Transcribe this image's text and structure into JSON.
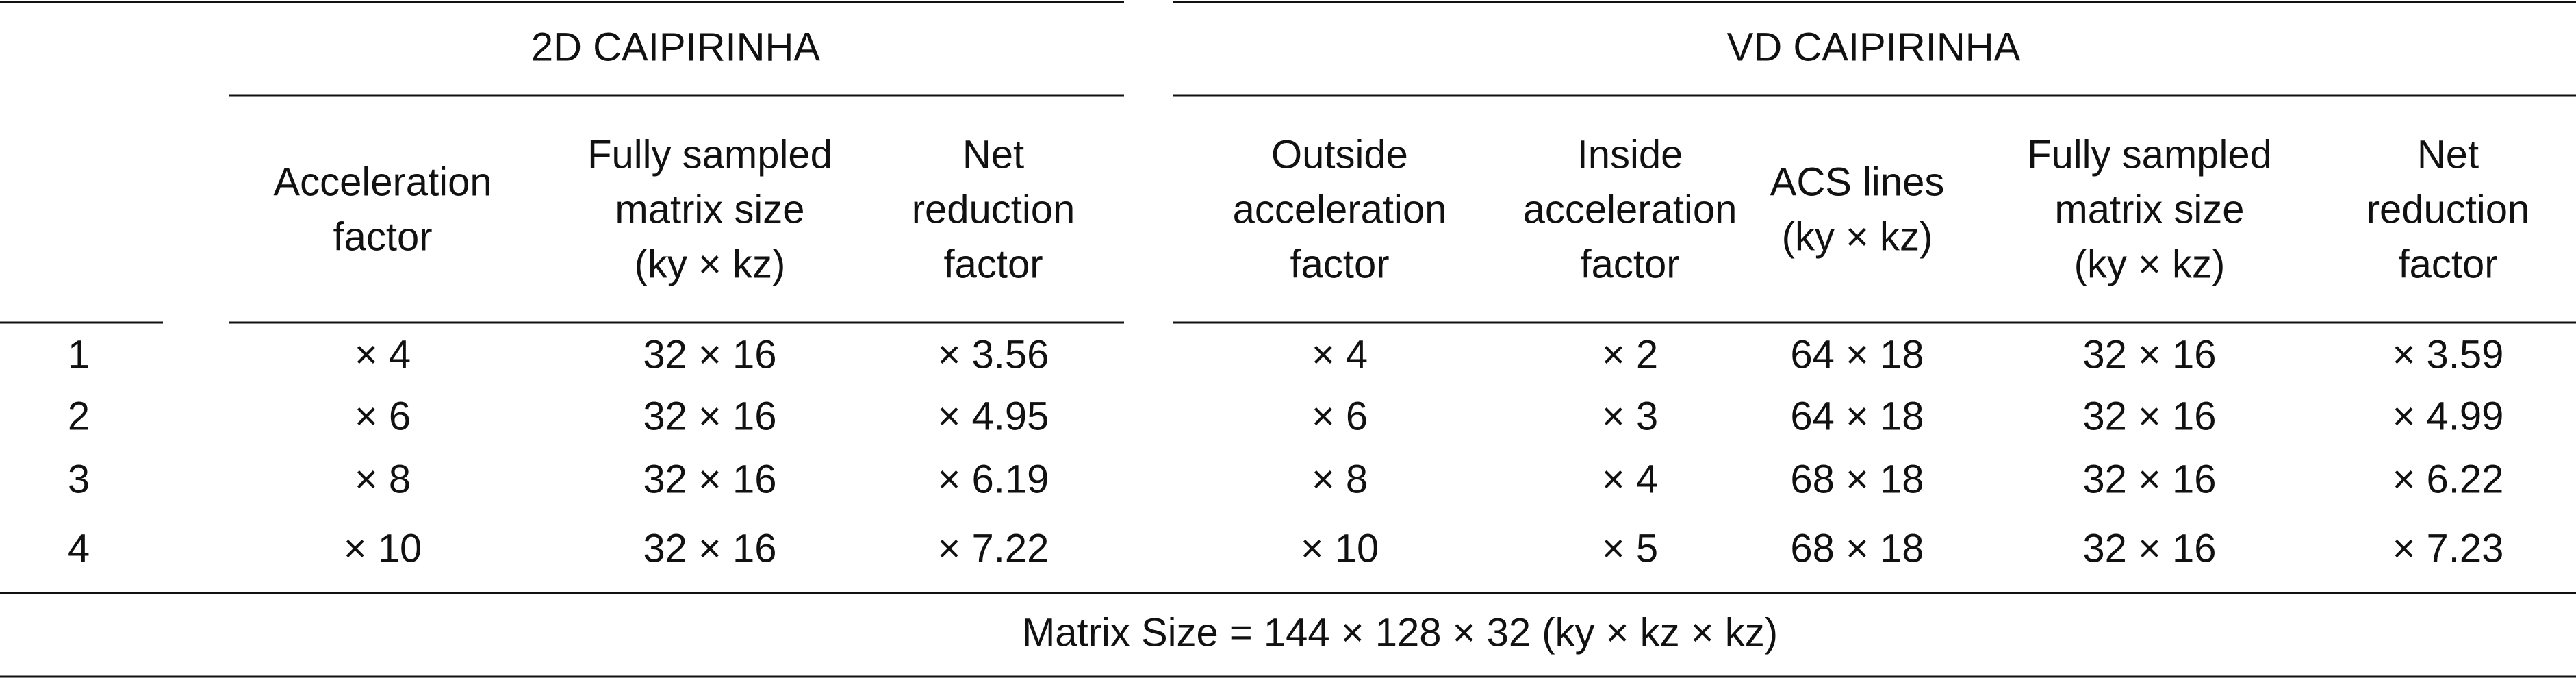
{
  "table": {
    "groups": [
      "2D CAIPIRINHA",
      "VD CAIPIRINHA"
    ],
    "columns": [
      [
        "Acceleration",
        "factor"
      ],
      [
        "Fully sampled",
        "matrix size",
        "(ky × kz)"
      ],
      [
        "Net",
        "reduction",
        "factor"
      ],
      [
        "Outside",
        "acceleration",
        "factor"
      ],
      [
        "Inside",
        "acceleration",
        "factor"
      ],
      [
        "ACS lines",
        "(ky × kz)"
      ],
      [
        "Fully sampled",
        "matrix size",
        "(ky × kz)"
      ],
      [
        "Net",
        "reduction",
        "factor"
      ]
    ],
    "rows": [
      [
        "1",
        "× 4",
        "32 × 16",
        "× 3.56",
        "× 4",
        "× 2",
        "64 × 18",
        "32 × 16",
        "× 3.59"
      ],
      [
        "2",
        "× 6",
        "32 × 16",
        "× 4.95",
        "× 6",
        "× 3",
        "64 × 18",
        "32 × 16",
        "× 4.99"
      ],
      [
        "3",
        "× 8",
        "32 × 16",
        "× 6.19",
        "× 8",
        "× 4",
        "68 × 18",
        "32 × 16",
        "× 6.22"
      ],
      [
        "4",
        "× 10",
        "32 × 16",
        "× 7.22",
        "× 10",
        "× 5",
        "68 × 18",
        "32 × 16",
        "× 7.23"
      ]
    ],
    "footer": "Matrix Size = 144 × 128 × 32 (ky × kz × kz)"
  }
}
